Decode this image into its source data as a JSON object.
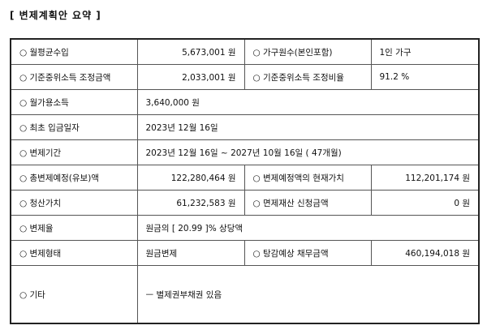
{
  "header": {
    "title": "[ 변제계획안 요약 ]"
  },
  "table": {
    "rows": [
      [
        "○ 월평균수입",
        "5,673,001 원",
        "○ 가구원수(본인포함)",
        "1인 가구"
      ],
      [
        "○ 기준중위소득 조정금액",
        "2,033,001 원",
        "○ 기준중위소득 조정비율",
        "91.2 %"
      ],
      [
        "○ 월가용소득",
        "3,640,000 원"
      ],
      [
        "○ 최초 입금일자",
        "2023년 12월 16일"
      ],
      [
        "○ 변제기간",
        "2023년 12월 16일 ~ 2027년 10월 16일 ( 47개월)"
      ],
      [
        "○ 총변제예정(유보)액",
        "122,280,464 원",
        "○ 변제예정액의 현재가치",
        "112,201,174 원"
      ],
      [
        "○ 청산가치",
        "61,232,583 원",
        "○ 면제재산 신청금액",
        "0 원"
      ],
      [
        "○ 변제율",
        "원금의 [ 20.99 ]% 상당액"
      ],
      [
        "○ 변제형태",
        "원금변제",
        "○ 탕감예상 채무금액",
        "460,194,018 원"
      ],
      [
        "○ 기타",
        "ㅡ 별제권부채권 있음"
      ]
    ]
  }
}
